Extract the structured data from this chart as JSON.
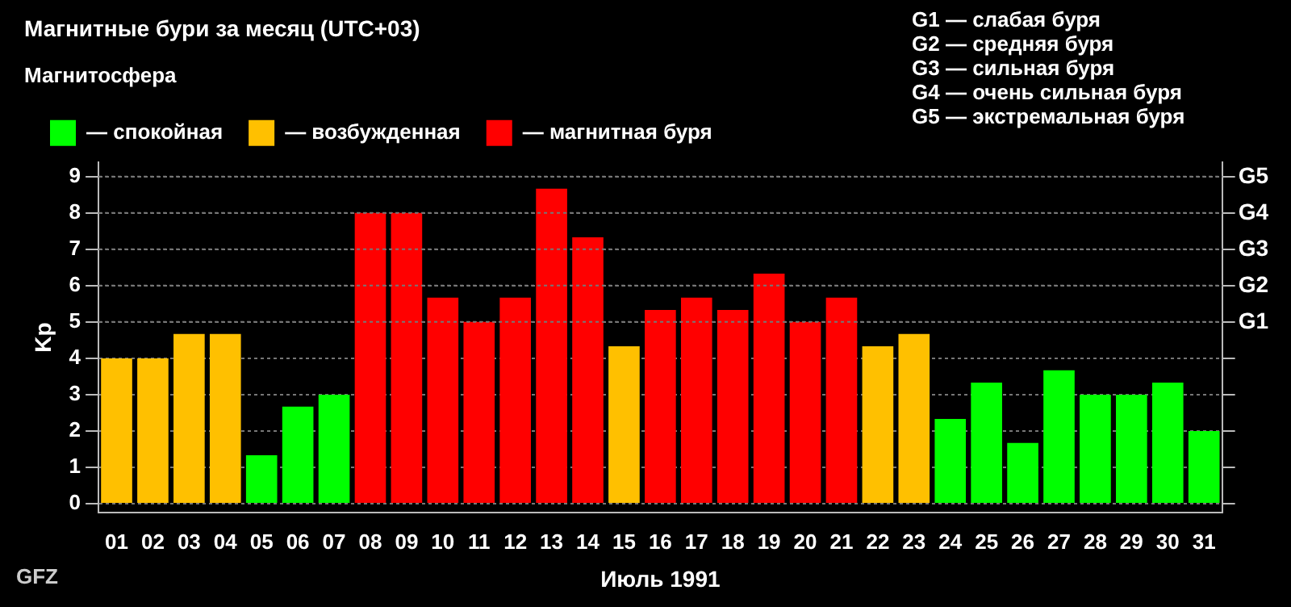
{
  "chart_data": {
    "type": "bar",
    "title": "Магнитные бури за месяц (UTC+03)",
    "xlabel": "Июль 1991",
    "ylabel": "Kp",
    "legend_title": "Магнитосфера",
    "legend": "top left",
    "grid": "y",
    "categories": [
      "01",
      "02",
      "03",
      "04",
      "05",
      "06",
      "07",
      "08",
      "09",
      "10",
      "11",
      "12",
      "13",
      "14",
      "15",
      "16",
      "17",
      "18",
      "19",
      "20",
      "21",
      "22",
      "23",
      "24",
      "25",
      "26",
      "27",
      "28",
      "29",
      "30",
      "31"
    ],
    "series": [
      {
        "name": "— спокойная",
        "color": "#00ff00",
        "values": [
          null,
          null,
          null,
          null,
          1.33,
          2.67,
          3,
          null,
          null,
          null,
          null,
          null,
          null,
          null,
          null,
          null,
          null,
          null,
          null,
          null,
          null,
          null,
          null,
          2.33,
          3.33,
          1.67,
          3.67,
          3,
          3,
          3.33,
          2
        ]
      },
      {
        "name": "— возбужденная",
        "color": "#ffc000",
        "values": [
          4,
          4,
          4.67,
          4.67,
          null,
          null,
          null,
          null,
          null,
          null,
          null,
          null,
          null,
          null,
          4.33,
          null,
          null,
          null,
          null,
          null,
          null,
          4.33,
          4.67,
          null,
          null,
          null,
          null,
          null,
          null,
          null,
          null
        ]
      },
      {
        "name": "— магнитная буря",
        "color": "#ff0000",
        "values": [
          null,
          null,
          null,
          null,
          null,
          null,
          null,
          8,
          8,
          5.67,
          5,
          5.67,
          8.67,
          7.33,
          null,
          5.33,
          5.67,
          5.33,
          6.33,
          5,
          5.67,
          null,
          null,
          null,
          null,
          null,
          null,
          null,
          null,
          null,
          null
        ]
      }
    ],
    "ylim": [
      -0.25,
      9.4
    ],
    "yticks": [
      0,
      1,
      2,
      3,
      4,
      5,
      6,
      7,
      8,
      9
    ],
    "ref_lines": [
      {
        "axis": "y",
        "value": 5,
        "label": "G1"
      },
      {
        "axis": "y",
        "value": 6,
        "label": "G2"
      },
      {
        "axis": "y",
        "value": 7,
        "label": "G3"
      },
      {
        "axis": "y",
        "value": 8,
        "label": "G4"
      },
      {
        "axis": "y",
        "value": 9,
        "label": "G5"
      }
    ],
    "annotations": [
      "G1 — слабая буря",
      "G2 — средняя буря",
      "G3 — сильная буря",
      "G4 — очень сильная буря",
      "G5 — экстремальная буря",
      "GFZ"
    ]
  }
}
